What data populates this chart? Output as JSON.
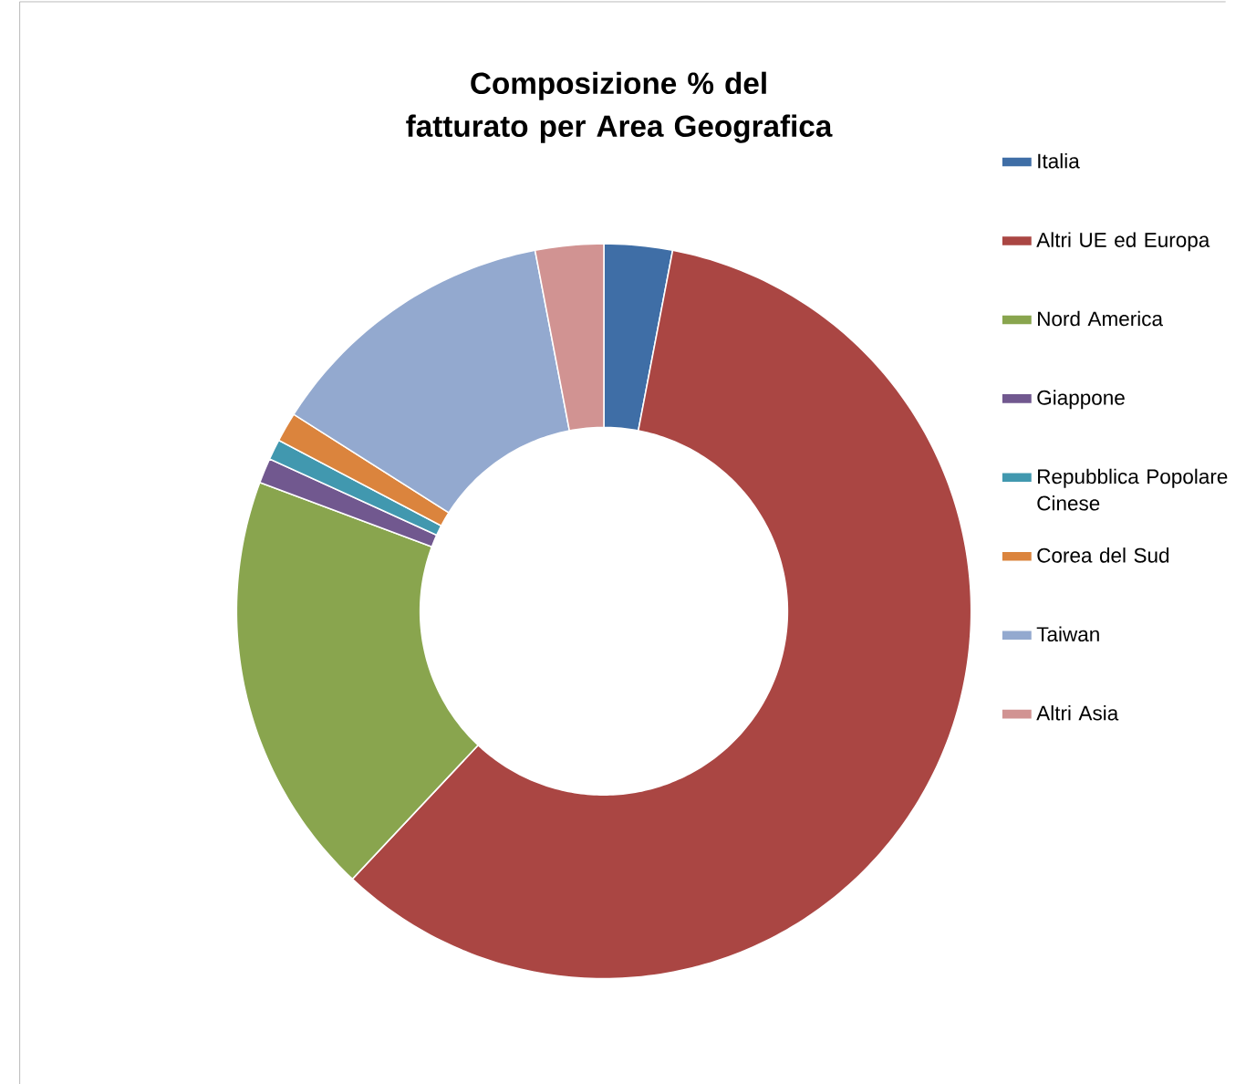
{
  "chart_data": {
    "type": "donut",
    "title": "Composizione % del fatturato per Area Geografica",
    "categories": [
      "Italia",
      "Altri UE ed Europa",
      "Nord America",
      "Giappone",
      "Repubblica Popolare Cinese",
      "Corea del Sud",
      "Taiwan",
      "Altri Asia"
    ],
    "values": [
      3,
      59,
      18.7,
      1.1,
      0.9,
      1.3,
      13,
      3
    ],
    "colors": [
      "#3f6ea6",
      "#aa4643",
      "#89a54e",
      "#71588f",
      "#4198af",
      "#db843d",
      "#93a9cf",
      "#d19392"
    ],
    "legend": "right"
  }
}
